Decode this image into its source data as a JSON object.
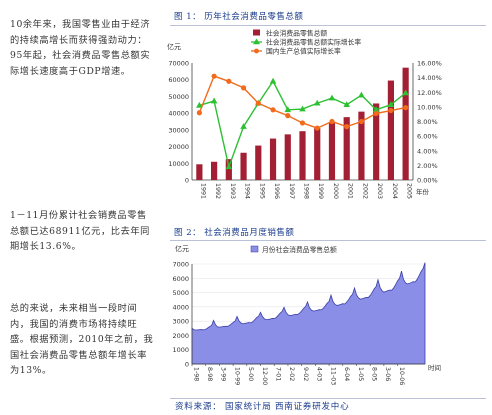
{
  "left_text": {
    "para1": "10余年来，我国零售业由于经济的持续高增长而获得强劲动力：95年起，社会消费品零售总额实际增长速度高于GDP增速。",
    "para2": "1－11月份累计社会销费品零售总额已达68911亿元，比去年同期增长13.6%。",
    "para3": "总的来说，未来相当一段时间内，我国的消费市场将持续旺盛。根据预测，2010年之前，我国社会消费品零售总额年增长率为13%。"
  },
  "figure1": {
    "title": "图 1： 历年社会消费品零售总额"
  },
  "figure2": {
    "title": "图 2： 社会消费品月度销售额"
  },
  "source": "资料来源： 国家统计局  西南证券研发中心",
  "colors": {
    "bar": "#a31f34",
    "green": "#2ec033",
    "orange": "#f26a1b",
    "area": "#8a8ee6",
    "area_line": "#3a3fa8",
    "title_blue": "#1a3c8c"
  },
  "chart_data": [
    {
      "type": "bar",
      "unit_label": "亿元",
      "x_unit": "年份",
      "categories": [
        "1991",
        "1992",
        "1993",
        "1994",
        "1995",
        "1996",
        "1997",
        "1998",
        "1999",
        "2000",
        "2001",
        "2002",
        "2003",
        "2004",
        "2005"
      ],
      "ylim": [
        0,
        70000
      ],
      "y_ticks": [
        0,
        10000,
        20000,
        30000,
        40000,
        50000,
        60000,
        70000
      ],
      "y2lim": [
        0,
        16
      ],
      "y2_ticks": [
        "0.00%",
        "2.00%",
        "4.00%",
        "6.00%",
        "8.00%",
        "10.00%",
        "12.00%",
        "14.00%",
        "16.00%"
      ],
      "legend_position": "top-center",
      "series": [
        {
          "name": "社会消费品零售总额",
          "kind": "bar",
          "axis": "left",
          "values": [
            9400,
            10900,
            12500,
            16300,
            20600,
            24800,
            27300,
            29200,
            31100,
            34200,
            37600,
            40900,
            45800,
            59500,
            67200
          ]
        },
        {
          "name": "社会消费品零售总额实际增长率",
          "kind": "line",
          "axis": "right",
          "marker": "triangle",
          "values": [
            10.2,
            10.8,
            1.8,
            7.3,
            10.5,
            13.5,
            9.6,
            9.7,
            10.5,
            11.2,
            10.3,
            11.6,
            9.6,
            10.3,
            11.9
          ]
        },
        {
          "name": "国内生产总值实际增长率",
          "kind": "line",
          "axis": "right",
          "marker": "circle",
          "values": [
            9.2,
            14.2,
            13.5,
            12.6,
            10.5,
            9.6,
            8.8,
            7.8,
            7.1,
            8.0,
            7.3,
            8.0,
            9.1,
            9.5,
            9.9
          ]
        }
      ]
    },
    {
      "type": "area",
      "unit_label": "亿元",
      "x_unit": "时间",
      "legend": "月份社会消费品零售总额",
      "legend_position": "top-center",
      "ylim": [
        0,
        7000
      ],
      "y_ticks": [
        0,
        1000,
        2000,
        3000,
        4000,
        5000,
        6000,
        7000
      ],
      "x_tick_labels": [
        "1-98",
        "8-98",
        "3-99",
        "10-99",
        "5-00",
        "12-00",
        "7-01",
        "2-02",
        "9-02",
        "4-03",
        "11-03",
        "6-04",
        "1-05",
        "8-05",
        "3-06",
        "10-06"
      ],
      "series": [
        {
          "name": "月份社会消费品零售总额",
          "values": [
            2500,
            2400,
            2380,
            2390,
            2400,
            2410,
            2390,
            2430,
            2520,
            2620,
            2700,
            3050,
            2750,
            2600,
            2580,
            2600,
            2620,
            2640,
            2630,
            2690,
            2800,
            2910,
            3000,
            3330,
            3020,
            2870,
            2820,
            2840,
            2870,
            2900,
            2880,
            2950,
            3100,
            3250,
            3350,
            3620,
            3320,
            3160,
            3100,
            3120,
            3150,
            3190,
            3180,
            3250,
            3400,
            3560,
            3680,
            3970,
            3620,
            3450,
            3390,
            3410,
            3450,
            3480,
            3460,
            3570,
            3720,
            3890,
            4020,
            4350,
            3940,
            3770,
            3700,
            3730,
            3760,
            3800,
            3790,
            3890,
            4060,
            4250,
            4380,
            4820,
            4380,
            4180,
            4100,
            4130,
            4170,
            4220,
            4200,
            4330,
            4510,
            4730,
            4880,
            5320,
            4850,
            4630,
            4540,
            4570,
            4620,
            4660,
            4650,
            4800,
            5000,
            5250,
            5420,
            5900,
            5380,
            5140,
            5030,
            5080,
            5130,
            5180,
            5160,
            5330,
            5560,
            5820,
            6000,
            6500,
            5930,
            5690,
            5600,
            5640,
            5700,
            5760,
            5740,
            5930,
            6190,
            6470,
            6680,
            7100
          ]
        }
      ]
    }
  ]
}
